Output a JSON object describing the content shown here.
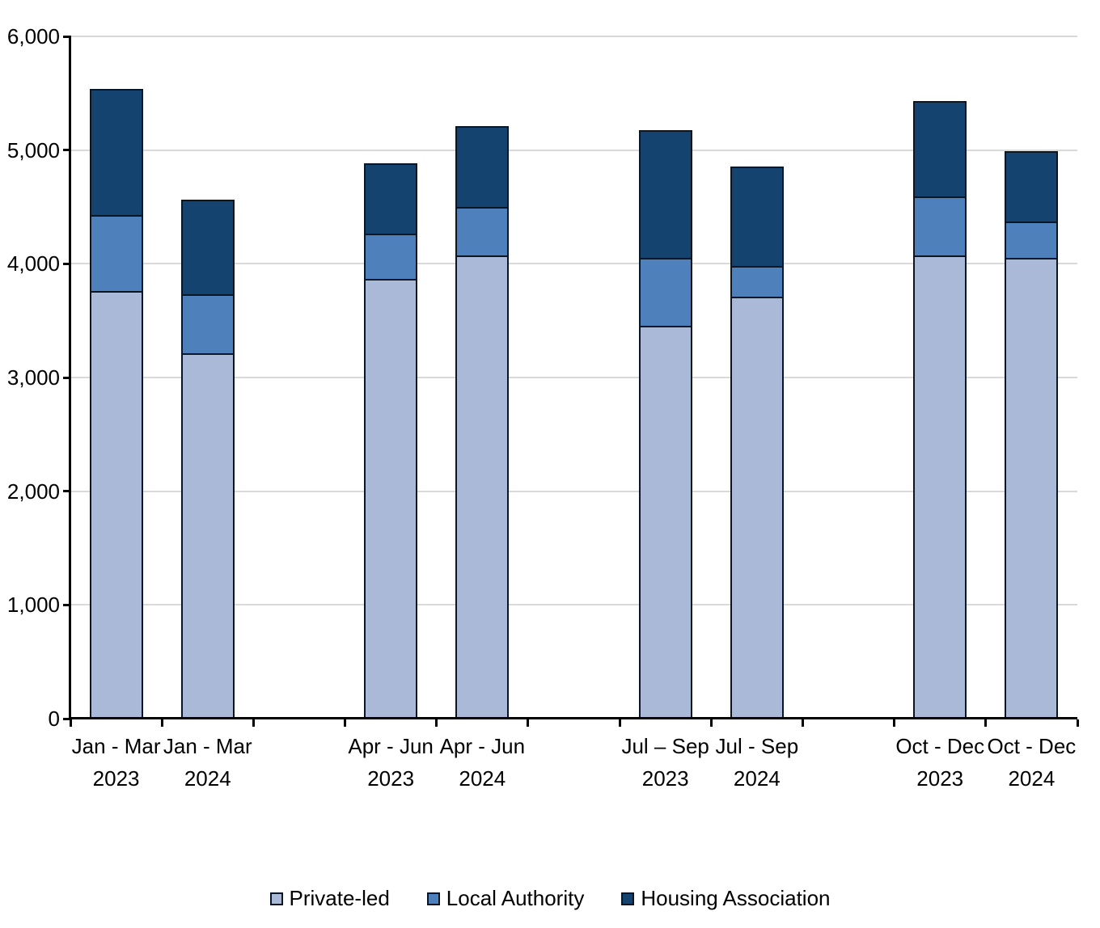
{
  "chart_data": {
    "type": "bar",
    "stacked": true,
    "title": "",
    "xlabel": "",
    "ylabel": "",
    "categories": [
      {
        "line1": "Jan - Mar",
        "line2": "2023"
      },
      {
        "line1": "Jan - Mar",
        "line2": "2024"
      },
      {
        "line1": "Apr - Jun",
        "line2": "2023"
      },
      {
        "line1": "Apr - Jun",
        "line2": "2024"
      },
      {
        "line1": "Jul – Sep",
        "line2": "2023"
      },
      {
        "line1": "Jul - Sep",
        "line2": "2024"
      },
      {
        "line1": "Oct - Dec",
        "line2": "2023"
      },
      {
        "line1": "Oct - Dec",
        "line2": "2024"
      }
    ],
    "series": [
      {
        "name": "Private-led",
        "color": "#AAB9D8",
        "values": [
          3760,
          3210,
          3870,
          4075,
          3455,
          3710,
          4070,
          4055
        ]
      },
      {
        "name": "Local Authority",
        "color": "#4E81BC",
        "values": [
          670,
          520,
          395,
          425,
          600,
          270,
          520,
          320
        ]
      },
      {
        "name": "Housing Association",
        "color": "#13436E",
        "values": [
          1110,
          830,
          615,
          710,
          1120,
          875,
          840,
          615
        ]
      }
    ],
    "totals": [
      5540,
      4560,
      4880,
      5210,
      5175,
      4855,
      5430,
      4990
    ],
    "ylim": [
      0,
      6000
    ],
    "ytick_step": 1000,
    "ytick_labels": [
      "0",
      "1,000",
      "2,000",
      "3,000",
      "4,000",
      "5,000",
      "6,000"
    ],
    "grid": "horizontal",
    "legend_position": "bottom",
    "colors": {
      "bar_border": "#0b1625",
      "gridline": "#D9D9D9",
      "axis": "#000000",
      "text": "#000000"
    }
  }
}
